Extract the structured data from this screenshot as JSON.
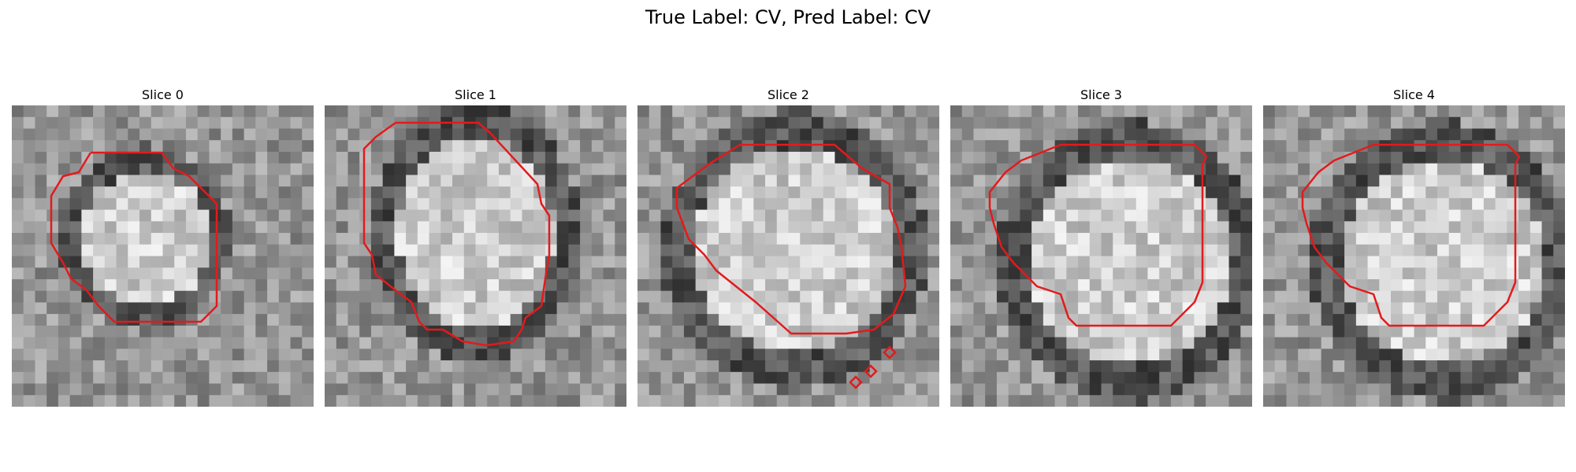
{
  "figure": {
    "title": "True Label: CV, Pred Label: CV"
  },
  "panels": [
    {
      "title": "Slice 0",
      "contour_color": "#e31a1c"
    },
    {
      "title": "Slice 1",
      "contour_color": "#e31a1c"
    },
    {
      "title": "Slice 2",
      "contour_color": "#e31a1c"
    },
    {
      "title": "Slice 3",
      "contour_color": "#e31a1c"
    },
    {
      "title": "Slice 4",
      "contour_color": "#e31a1c"
    }
  ]
}
